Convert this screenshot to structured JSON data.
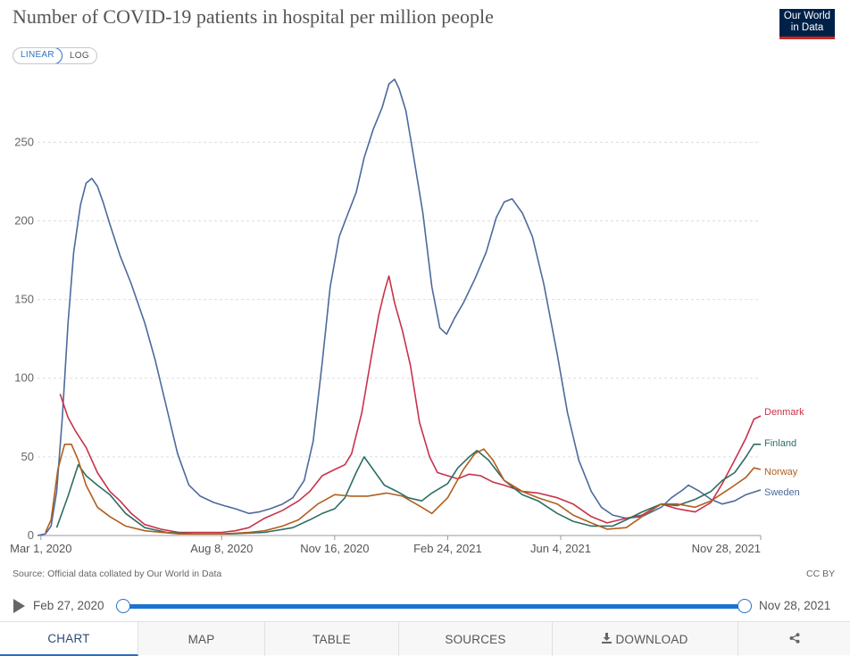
{
  "title": "Number of COVID-19 patients in hospital per million people",
  "logo": {
    "line1": "Our World",
    "line2": "in Data"
  },
  "scale_toggle": {
    "linear": "LINEAR",
    "log": "LOG",
    "selected": "LINEAR"
  },
  "source": "Source: Official data collated by Our World in Data",
  "license": "CC BY",
  "timeline": {
    "start_label": "Feb 27, 2020",
    "end_label": "Nov 28, 2021"
  },
  "tabs": {
    "chart": "CHART",
    "map": "MAP",
    "table": "TABLE",
    "sources": "SOURCES",
    "download": "DOWNLOAD",
    "active": "CHART"
  },
  "icons": {
    "play": "play-icon",
    "download": "download-icon",
    "share": "share-icon"
  },
  "chart_data": {
    "type": "line",
    "title": "Number of COVID-19 patients in hospital per million people",
    "x_range": [
      "2020-02-27",
      "2021-11-28"
    ],
    "ylim": [
      0,
      295
    ],
    "y_ticks": [
      0,
      50,
      100,
      150,
      200,
      250
    ],
    "x_ticks": [
      {
        "date": "2020-03-01",
        "label": "Mar 1, 2020"
      },
      {
        "date": "2020-08-08",
        "label": "Aug 8, 2020"
      },
      {
        "date": "2020-11-16",
        "label": "Nov 16, 2020"
      },
      {
        "date": "2021-02-24",
        "label": "Feb 24, 2021"
      },
      {
        "date": "2021-06-04",
        "label": "Jun 4, 2021"
      },
      {
        "date": "2021-11-28",
        "label": "Nov 28, 2021"
      }
    ],
    "grid": true,
    "series": [
      {
        "name": "Sweden",
        "color": "#4c6a9c",
        "points": [
          [
            "2020-02-27",
            0
          ],
          [
            "2020-03-05",
            1
          ],
          [
            "2020-03-10",
            6
          ],
          [
            "2020-03-15",
            28
          ],
          [
            "2020-03-20",
            75
          ],
          [
            "2020-03-25",
            135
          ],
          [
            "2020-03-30",
            180
          ],
          [
            "2020-04-05",
            210
          ],
          [
            "2020-04-10",
            224
          ],
          [
            "2020-04-15",
            227
          ],
          [
            "2020-04-20",
            222
          ],
          [
            "2020-04-25",
            212
          ],
          [
            "2020-05-01",
            198
          ],
          [
            "2020-05-10",
            178
          ],
          [
            "2020-05-20",
            160
          ],
          [
            "2020-06-01",
            135
          ],
          [
            "2020-06-10",
            112
          ],
          [
            "2020-06-20",
            82
          ],
          [
            "2020-06-30",
            52
          ],
          [
            "2020-07-10",
            32
          ],
          [
            "2020-07-20",
            25
          ],
          [
            "2020-08-01",
            21
          ],
          [
            "2020-08-10",
            19
          ],
          [
            "2020-08-20",
            17
          ],
          [
            "2020-09-01",
            14
          ],
          [
            "2020-09-10",
            15
          ],
          [
            "2020-09-20",
            17
          ],
          [
            "2020-10-01",
            20
          ],
          [
            "2020-10-10",
            24
          ],
          [
            "2020-10-20",
            35
          ],
          [
            "2020-10-28",
            60
          ],
          [
            "2020-11-05",
            110
          ],
          [
            "2020-11-12",
            158
          ],
          [
            "2020-11-20",
            190
          ],
          [
            "2020-11-28",
            205
          ],
          [
            "2020-12-05",
            218
          ],
          [
            "2020-12-12",
            240
          ],
          [
            "2020-12-20",
            258
          ],
          [
            "2020-12-28",
            272
          ],
          [
            "2021-01-03",
            287
          ],
          [
            "2021-01-08",
            290
          ],
          [
            "2021-01-12",
            284
          ],
          [
            "2021-01-18",
            270
          ],
          [
            "2021-01-25",
            240
          ],
          [
            "2021-02-02",
            205
          ],
          [
            "2021-02-10",
            158
          ],
          [
            "2021-02-17",
            132
          ],
          [
            "2021-02-23",
            128
          ],
          [
            "2021-03-02",
            138
          ],
          [
            "2021-03-10",
            148
          ],
          [
            "2021-03-20",
            163
          ],
          [
            "2021-03-30",
            180
          ],
          [
            "2021-04-08",
            202
          ],
          [
            "2021-04-15",
            212
          ],
          [
            "2021-04-22",
            214
          ],
          [
            "2021-05-01",
            205
          ],
          [
            "2021-05-10",
            190
          ],
          [
            "2021-05-20",
            160
          ],
          [
            "2021-06-01",
            115
          ],
          [
            "2021-06-10",
            78
          ],
          [
            "2021-06-20",
            48
          ],
          [
            "2021-07-01",
            28
          ],
          [
            "2021-07-10",
            18
          ],
          [
            "2021-07-20",
            13
          ],
          [
            "2021-08-01",
            11
          ],
          [
            "2021-08-15",
            12
          ],
          [
            "2021-09-01",
            18
          ],
          [
            "2021-09-10",
            24
          ],
          [
            "2021-09-20",
            29
          ],
          [
            "2021-09-25",
            32
          ],
          [
            "2021-10-05",
            28
          ],
          [
            "2021-10-15",
            23
          ],
          [
            "2021-10-25",
            20
          ],
          [
            "2021-11-05",
            22
          ],
          [
            "2021-11-15",
            26
          ],
          [
            "2021-11-28",
            29
          ]
        ]
      },
      {
        "name": "Denmark",
        "color": "#c8324b",
        "points": [
          [
            "2020-03-18",
            90
          ],
          [
            "2020-03-25",
            75
          ],
          [
            "2020-04-01",
            66
          ],
          [
            "2020-04-10",
            56
          ],
          [
            "2020-04-20",
            40
          ],
          [
            "2020-05-01",
            28
          ],
          [
            "2020-05-10",
            22
          ],
          [
            "2020-05-20",
            14
          ],
          [
            "2020-06-01",
            7
          ],
          [
            "2020-06-15",
            4
          ],
          [
            "2020-07-01",
            2
          ],
          [
            "2020-07-20",
            2
          ],
          [
            "2020-08-08",
            2
          ],
          [
            "2020-08-20",
            3
          ],
          [
            "2020-09-01",
            5
          ],
          [
            "2020-09-15",
            11
          ],
          [
            "2020-10-01",
            16
          ],
          [
            "2020-10-15",
            22
          ],
          [
            "2020-10-25",
            28
          ],
          [
            "2020-11-05",
            38
          ],
          [
            "2020-11-16",
            42
          ],
          [
            "2020-11-25",
            45
          ],
          [
            "2020-12-01",
            52
          ],
          [
            "2020-12-10",
            78
          ],
          [
            "2020-12-18",
            112
          ],
          [
            "2020-12-25",
            140
          ],
          [
            "2020-12-30",
            155
          ],
          [
            "2021-01-03",
            165
          ],
          [
            "2021-01-08",
            148
          ],
          [
            "2021-01-15",
            130
          ],
          [
            "2021-01-22",
            108
          ],
          [
            "2021-01-30",
            72
          ],
          [
            "2021-02-08",
            50
          ],
          [
            "2021-02-15",
            40
          ],
          [
            "2021-02-24",
            38
          ],
          [
            "2021-03-05",
            36
          ],
          [
            "2021-03-15",
            39
          ],
          [
            "2021-03-25",
            38
          ],
          [
            "2021-04-05",
            34
          ],
          [
            "2021-04-15",
            32
          ],
          [
            "2021-05-01",
            28
          ],
          [
            "2021-05-15",
            27
          ],
          [
            "2021-06-01",
            24
          ],
          [
            "2021-06-15",
            20
          ],
          [
            "2021-07-01",
            12
          ],
          [
            "2021-07-15",
            8
          ],
          [
            "2021-08-01",
            11
          ],
          [
            "2021-08-15",
            13
          ],
          [
            "2021-09-01",
            20
          ],
          [
            "2021-09-15",
            17
          ],
          [
            "2021-10-01",
            15
          ],
          [
            "2021-10-15",
            21
          ],
          [
            "2021-10-25",
            33
          ],
          [
            "2021-11-05",
            48
          ],
          [
            "2021-11-15",
            62
          ],
          [
            "2021-11-22",
            74
          ],
          [
            "2021-11-28",
            76
          ]
        ]
      },
      {
        "name": "Finland",
        "color": "#2d6e63",
        "points": [
          [
            "2020-03-15",
            5
          ],
          [
            "2020-03-25",
            25
          ],
          [
            "2020-04-03",
            45
          ],
          [
            "2020-04-10",
            38
          ],
          [
            "2020-04-20",
            32
          ],
          [
            "2020-05-01",
            26
          ],
          [
            "2020-05-15",
            14
          ],
          [
            "2020-06-01",
            5
          ],
          [
            "2020-06-20",
            2
          ],
          [
            "2020-07-15",
            1
          ],
          [
            "2020-08-15",
            1
          ],
          [
            "2020-09-15",
            2
          ],
          [
            "2020-10-10",
            5
          ],
          [
            "2020-10-25",
            10
          ],
          [
            "2020-11-05",
            14
          ],
          [
            "2020-11-16",
            17
          ],
          [
            "2020-11-25",
            24
          ],
          [
            "2020-12-05",
            40
          ],
          [
            "2020-12-12",
            50
          ],
          [
            "2020-12-20",
            42
          ],
          [
            "2020-12-30",
            32
          ],
          [
            "2021-01-10",
            28
          ],
          [
            "2021-01-20",
            24
          ],
          [
            "2021-02-01",
            22
          ],
          [
            "2021-02-10",
            27
          ],
          [
            "2021-02-24",
            33
          ],
          [
            "2021-03-05",
            43
          ],
          [
            "2021-03-15",
            50
          ],
          [
            "2021-03-22",
            54
          ],
          [
            "2021-04-01",
            48
          ],
          [
            "2021-04-15",
            35
          ],
          [
            "2021-05-01",
            26
          ],
          [
            "2021-05-15",
            22
          ],
          [
            "2021-06-01",
            14
          ],
          [
            "2021-06-15",
            9
          ],
          [
            "2021-07-01",
            6
          ],
          [
            "2021-07-20",
            6
          ],
          [
            "2021-08-01",
            10
          ],
          [
            "2021-08-15",
            15
          ],
          [
            "2021-09-01",
            20
          ],
          [
            "2021-09-15",
            19
          ],
          [
            "2021-10-01",
            23
          ],
          [
            "2021-10-15",
            28
          ],
          [
            "2021-10-25",
            35
          ],
          [
            "2021-11-05",
            40
          ],
          [
            "2021-11-15",
            50
          ],
          [
            "2021-11-22",
            58
          ],
          [
            "2021-11-28",
            58
          ]
        ]
      },
      {
        "name": "Norway",
        "color": "#b15f1f",
        "points": [
          [
            "2020-03-05",
            2
          ],
          [
            "2020-03-10",
            10
          ],
          [
            "2020-03-16",
            42
          ],
          [
            "2020-03-22",
            58
          ],
          [
            "2020-03-28",
            58
          ],
          [
            "2020-04-03",
            48
          ],
          [
            "2020-04-10",
            32
          ],
          [
            "2020-04-20",
            18
          ],
          [
            "2020-05-01",
            12
          ],
          [
            "2020-05-15",
            6
          ],
          [
            "2020-06-01",
            3
          ],
          [
            "2020-07-01",
            1
          ],
          [
            "2020-08-08",
            1
          ],
          [
            "2020-09-01",
            2
          ],
          [
            "2020-09-15",
            3
          ],
          [
            "2020-10-01",
            6
          ],
          [
            "2020-10-15",
            10
          ],
          [
            "2020-11-01",
            20
          ],
          [
            "2020-11-16",
            26
          ],
          [
            "2020-12-01",
            25
          ],
          [
            "2020-12-15",
            25
          ],
          [
            "2021-01-01",
            27
          ],
          [
            "2021-01-15",
            25
          ],
          [
            "2021-02-01",
            18
          ],
          [
            "2021-02-10",
            14
          ],
          [
            "2021-02-24",
            24
          ],
          [
            "2021-03-10",
            42
          ],
          [
            "2021-03-20",
            52
          ],
          [
            "2021-03-28",
            55
          ],
          [
            "2021-04-05",
            48
          ],
          [
            "2021-04-15",
            35
          ],
          [
            "2021-05-01",
            28
          ],
          [
            "2021-05-15",
            24
          ],
          [
            "2021-06-01",
            20
          ],
          [
            "2021-06-15",
            13
          ],
          [
            "2021-07-01",
            8
          ],
          [
            "2021-07-15",
            4
          ],
          [
            "2021-08-01",
            5
          ],
          [
            "2021-08-15",
            12
          ],
          [
            "2021-09-01",
            20
          ],
          [
            "2021-09-15",
            20
          ],
          [
            "2021-10-01",
            18
          ],
          [
            "2021-10-15",
            22
          ],
          [
            "2021-11-01",
            30
          ],
          [
            "2021-11-15",
            37
          ],
          [
            "2021-11-22",
            43
          ],
          [
            "2021-11-28",
            42
          ]
        ]
      }
    ]
  }
}
